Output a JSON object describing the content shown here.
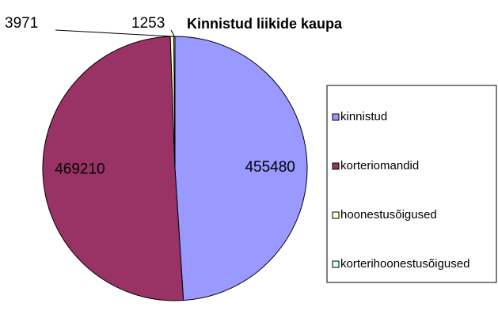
{
  "chart_data": {
    "type": "pie",
    "title": "Kinnistud liikide kaupa",
    "categories": [
      "kinnistud",
      "korteriomandid",
      "hoonestusõigused",
      "korterihoonestusõigused"
    ],
    "values": [
      455480,
      469210,
      3971,
      1253
    ],
    "colors": [
      "#9999ff",
      "#993366",
      "#ffffcc",
      "#ccffff"
    ],
    "legend": "right"
  }
}
